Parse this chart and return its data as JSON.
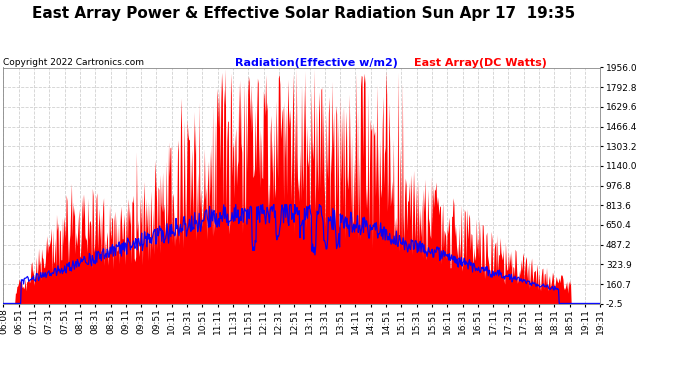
{
  "title": "East Array Power & Effective Solar Radiation Sun Apr 17  19:35",
  "copyright": "Copyright 2022 Cartronics.com",
  "legend_radiation": "Radiation(Effective w/m2)",
  "legend_east": "East Array(DC Watts)",
  "radiation_color": "blue",
  "east_color": "red",
  "background_color": "#ffffff",
  "grid_color": "#cccccc",
  "ymin": -2.5,
  "ymax": 1956.0,
  "yticks": [
    -2.5,
    160.7,
    323.9,
    487.2,
    650.4,
    813.6,
    976.8,
    1140.0,
    1303.2,
    1466.4,
    1629.6,
    1792.8,
    1956.0
  ],
  "ytick_labels": [
    "-2.5",
    "160.7",
    "323.9",
    "487.2",
    "650.4",
    "813.6",
    "976.8",
    "1140.0",
    "1303.2",
    "1466.4",
    "1629.6",
    "1792.8",
    "1956.0"
  ],
  "xtick_labels": [
    "06:08",
    "06:51",
    "07:11",
    "07:31",
    "07:51",
    "08:11",
    "08:31",
    "08:51",
    "09:11",
    "09:31",
    "09:51",
    "10:11",
    "10:31",
    "10:51",
    "11:11",
    "11:31",
    "11:51",
    "12:11",
    "12:31",
    "12:51",
    "13:11",
    "13:31",
    "13:51",
    "14:11",
    "14:31",
    "14:51",
    "15:11",
    "15:31",
    "15:51",
    "16:11",
    "16:31",
    "16:51",
    "17:11",
    "17:31",
    "17:51",
    "18:11",
    "18:31",
    "18:51",
    "19:11",
    "19:31"
  ],
  "title_fontsize": 11,
  "copyright_fontsize": 6.5,
  "legend_fontsize": 8,
  "tick_fontsize": 6.5
}
